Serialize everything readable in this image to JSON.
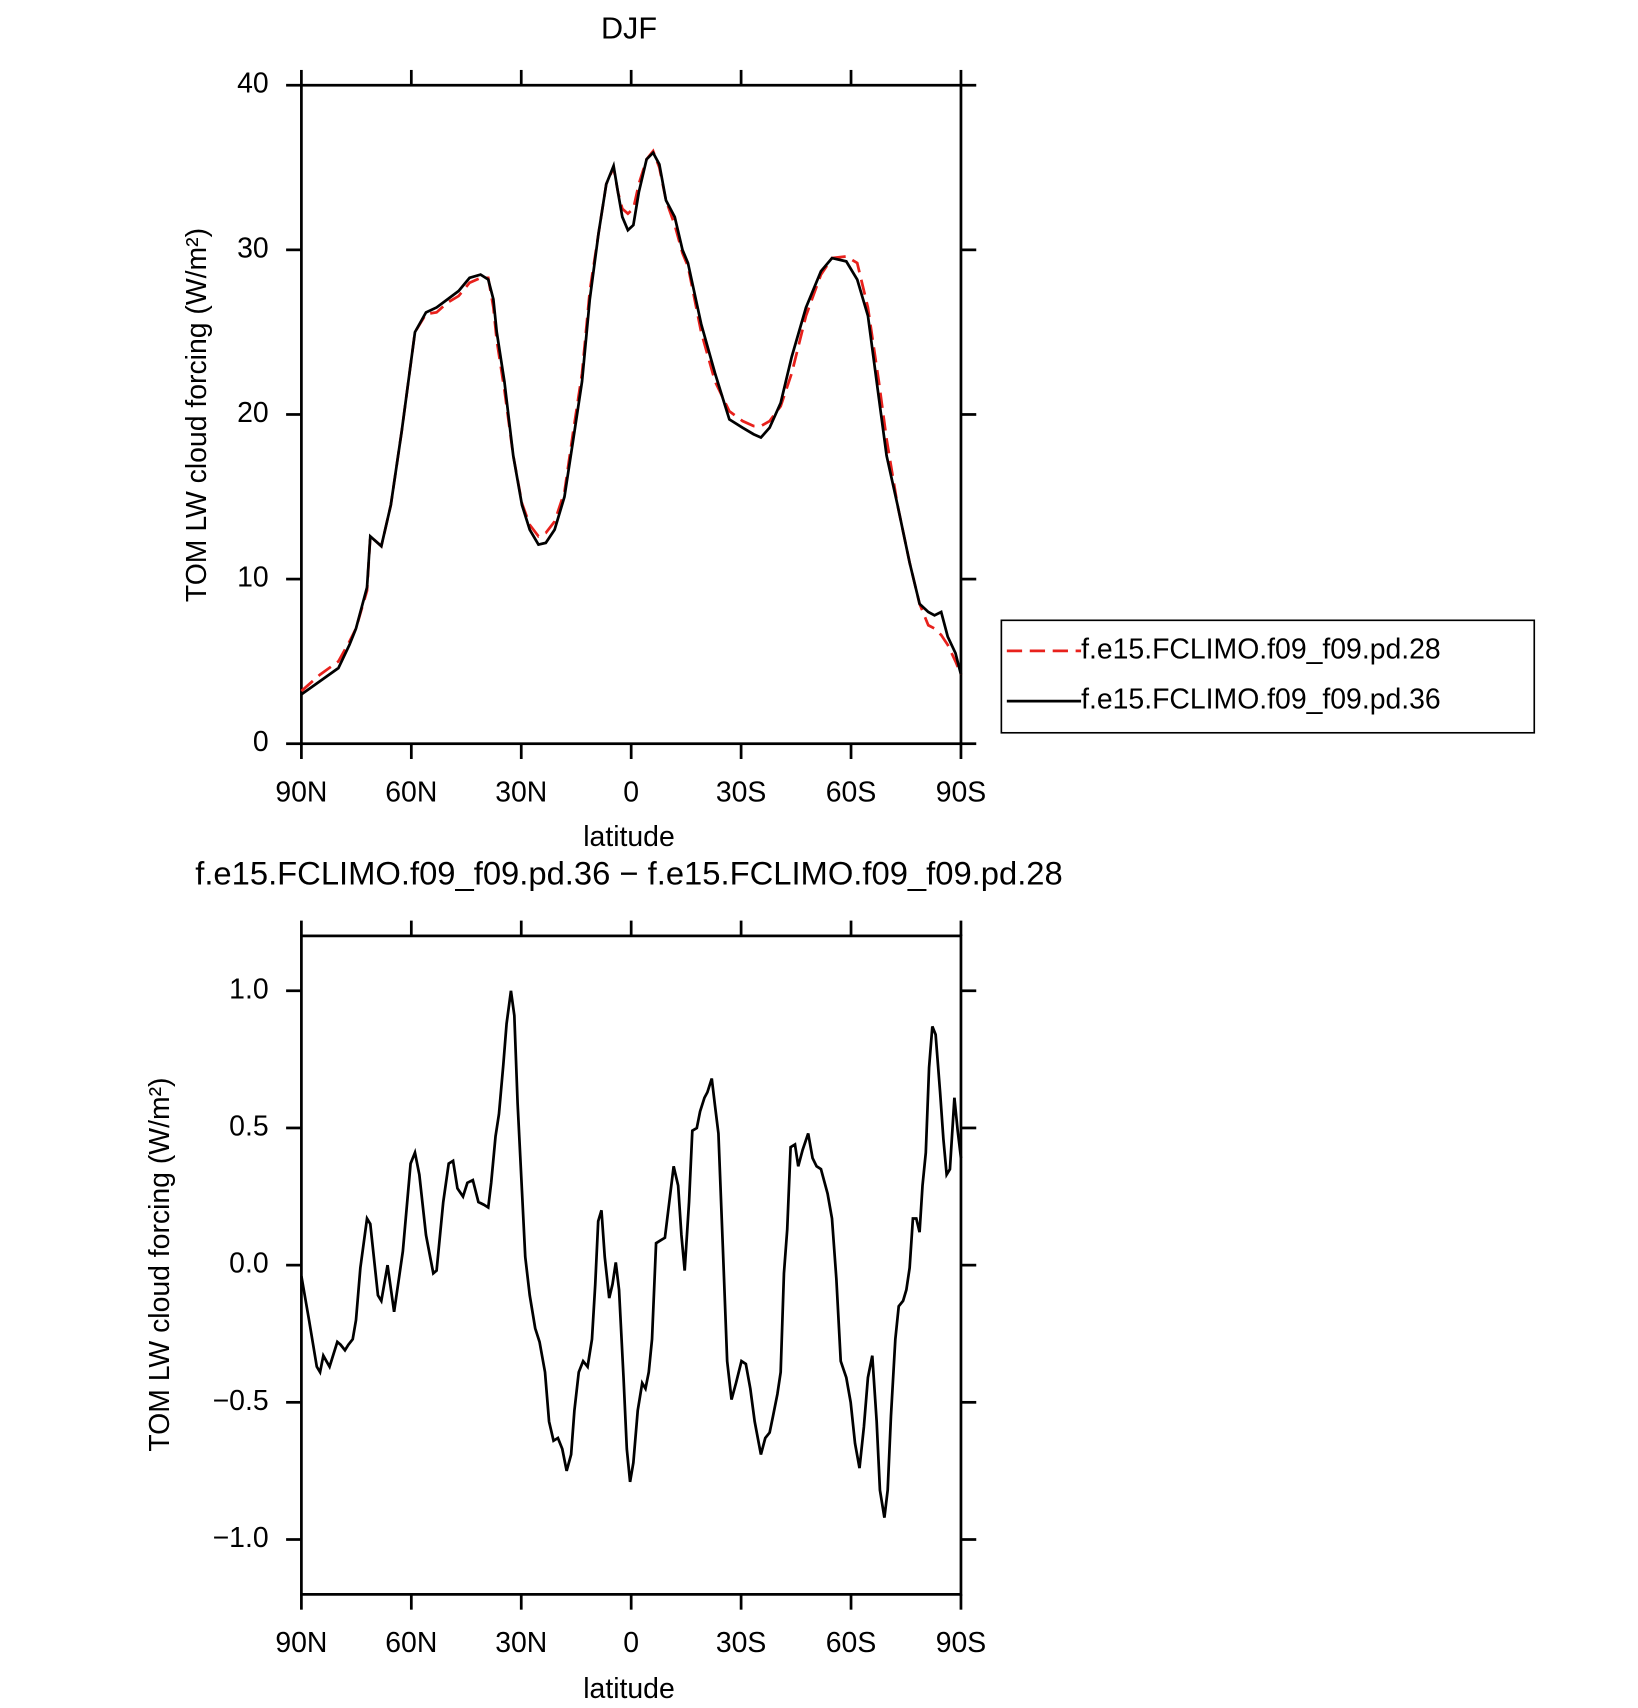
{
  "chart_data": [
    {
      "type": "line",
      "title": "DJF",
      "xlabel": "latitude",
      "ylabel": "TOM LW cloud forcing (W/m²)",
      "xlim": [
        90,
        -90
      ],
      "ylim": [
        0,
        40
      ],
      "xticks": [
        {
          "value": 90,
          "label": "90N"
        },
        {
          "value": 60,
          "label": "60N"
        },
        {
          "value": 30,
          "label": "30N"
        },
        0,
        {
          "value": -30,
          "label": "30S"
        },
        {
          "value": -60,
          "label": "60S"
        },
        {
          "value": -90,
          "label": "90S"
        }
      ],
      "yticks": [
        0,
        10,
        20,
        30,
        40
      ],
      "legend": "outside-right",
      "x": [
        90,
        84.9,
        79.9,
        76.9,
        75.1,
        72.1,
        71.2,
        68.2,
        65.6,
        62.6,
        59.0,
        56.0,
        53.1,
        50.1,
        47.1,
        44.1,
        41.1,
        39.0,
        37.6,
        36.7,
        34.6,
        32.2,
        29.8,
        27.7,
        25.3,
        23.3,
        20.9,
        18.2,
        15.8,
        13.4,
        11.3,
        8.9,
        6.8,
        4.8,
        3.6,
        2.4,
        0.9,
        -0.6,
        -2.1,
        -4.2,
        -6.0,
        -7.7,
        -9.5,
        -11.9,
        -14.0,
        -15.5,
        -19.1,
        -22.9,
        -26.8,
        -30.4,
        -33.4,
        -35.4,
        -37.8,
        -40.8,
        -43.8,
        -47.7,
        -51.8,
        -54.8,
        -58.7,
        -61.7,
        -64.6,
        -67.6,
        -69.7,
        -72.7,
        -76.0,
        -78.7,
        -81.1,
        -82.8,
        -84.6,
        -86.4,
        -88.5,
        -90
      ],
      "series": [
        {
          "name": "f.e15.FCLIMO.f09_f09.pd.28",
          "color": "#e8211c",
          "dash": "dashed",
          "values": [
            3.2,
            4.2,
            5.0,
            6.2,
            7.0,
            9.3,
            12.6,
            12.0,
            14.5,
            19.0,
            25.0,
            26.1,
            26.2,
            26.8,
            27.2,
            28.0,
            28.3,
            28.3,
            26.5,
            24.5,
            21.5,
            17.5,
            14.6,
            13.3,
            12.6,
            12.8,
            13.5,
            15.3,
            19.0,
            22.5,
            27.5,
            31.0,
            34.0,
            35.0,
            33.5,
            32.5,
            32.2,
            32.5,
            34.0,
            35.5,
            36.0,
            35.0,
            33.0,
            31.5,
            29.8,
            29.0,
            25.0,
            22.0,
            20.2,
            19.6,
            19.3,
            19.3,
            19.6,
            20.5,
            22.5,
            26.0,
            28.5,
            29.5,
            29.6,
            29.2,
            26.5,
            22.0,
            18.5,
            14.5,
            11.0,
            8.5,
            7.2,
            7.0,
            6.6,
            6.0,
            5.0,
            4.2
          ]
        },
        {
          "name": "f.e15.FCLIMO.f09_f09.pd.36",
          "color": "#000000",
          "dash": "solid",
          "values": [
            3.0,
            3.8,
            4.6,
            6.0,
            7.0,
            9.5,
            12.6,
            12.0,
            14.5,
            19.0,
            25.0,
            26.2,
            26.5,
            27.0,
            27.5,
            28.3,
            28.5,
            28.2,
            27.0,
            25.0,
            22.0,
            17.5,
            14.5,
            13.0,
            12.1,
            12.2,
            13.0,
            15.0,
            18.5,
            22.0,
            27.0,
            31.0,
            34.0,
            35.1,
            33.5,
            32.0,
            31.2,
            31.5,
            33.5,
            35.5,
            35.9,
            35.2,
            33.0,
            32.0,
            30.0,
            29.2,
            25.5,
            22.5,
            19.7,
            19.2,
            18.8,
            18.6,
            19.2,
            20.7,
            23.5,
            26.5,
            28.7,
            29.5,
            29.3,
            28.2,
            26.0,
            21.0,
            17.5,
            14.5,
            11.0,
            8.5,
            8.0,
            7.8,
            8.0,
            6.5,
            5.5,
            4.2
          ]
        }
      ]
    },
    {
      "type": "line",
      "title": "f.e15.FCLIMO.f09_f09.pd.36 − f.e15.FCLIMO.f09_f09.pd.28",
      "xlabel": "latitude",
      "ylabel": "TOM LW cloud forcing (W/m²)",
      "xlim": [
        90,
        -90
      ],
      "ylim": [
        -1.2,
        1.2
      ],
      "xticks": [
        {
          "value": 90,
          "label": "90N"
        },
        {
          "value": 60,
          "label": "60N"
        },
        {
          "value": 30,
          "label": "30N"
        },
        0,
        {
          "value": -30,
          "label": "30S"
        },
        {
          "value": -60,
          "label": "60S"
        },
        {
          "value": -90,
          "label": "90S"
        }
      ],
      "yticks": [
        {
          "value": -1,
          "label": "−1.0"
        },
        {
          "value": -0.5,
          "label": "−0.5"
        },
        {
          "value": 0,
          "label": "0.0"
        },
        0.5,
        {
          "value": 1,
          "label": "1.0"
        }
      ],
      "x": [
        90,
        87.9,
        85.8,
        84.9,
        84.0,
        82.3,
        80.2,
        79.3,
        78.1,
        77.2,
        76.0,
        75.1,
        73.9,
        72.1,
        71.2,
        69.1,
        68.2,
        66.5,
        64.7,
        62.3,
        60.2,
        59.0,
        57.8,
        56.0,
        54.0,
        53.1,
        51.3,
        49.8,
        48.6,
        47.4,
        45.9,
        44.7,
        43.2,
        41.7,
        40.2,
        39.0,
        38.2,
        37.0,
        36.1,
        34.9,
        34.0,
        32.8,
        31.9,
        31.0,
        29.8,
        28.9,
        27.7,
        26.2,
        25.0,
        23.5,
        22.4,
        21.2,
        20.0,
        18.8,
        17.6,
        16.4,
        15.5,
        14.3,
        13.1,
        11.9,
        10.7,
        9.8,
        9.0,
        8.1,
        7.2,
        6.0,
        5.1,
        4.2,
        3.3,
        2.1,
        1.2,
        0.3,
        -0.6,
        -1.8,
        -3.0,
        -3.9,
        -4.8,
        -5.7,
        -6.8,
        -8.0,
        -9.2,
        -10.4,
        -11.6,
        -12.8,
        -13.7,
        -14.6,
        -15.8,
        -16.7,
        -17.9,
        -18.8,
        -20.0,
        -20.8,
        -22.0,
        -22.9,
        -23.8,
        -25.0,
        -26.2,
        -27.4,
        -28.6,
        -30.1,
        -31.3,
        -32.5,
        -33.7,
        -35.4,
        -36.6,
        -37.8,
        -38.7,
        -39.9,
        -40.8,
        -41.7,
        -42.6,
        -43.5,
        -44.7,
        -45.6,
        -46.8,
        -48.3,
        -49.5,
        -50.6,
        -51.8,
        -53.6,
        -54.8,
        -56.0,
        -57.2,
        -58.7,
        -59.9,
        -61.1,
        -62.3,
        -63.5,
        -64.6,
        -65.8,
        -67.0,
        -67.9,
        -69.1,
        -70.0,
        -70.9,
        -72.1,
        -73.0,
        -74.2,
        -75.1,
        -76.0,
        -76.9,
        -77.8,
        -78.7,
        -79.5,
        -80.4,
        -81.3,
        -82.2,
        -83.1,
        -84.3,
        -85.2,
        -86.1,
        -87.0,
        -88.2,
        -89.1,
        -90
      ],
      "series": [
        {
          "color": "#000000",
          "dash": "solid",
          "values": [
            -0.04,
            -0.2,
            -0.37,
            -0.39,
            -0.33,
            -0.37,
            -0.28,
            -0.29,
            -0.31,
            -0.29,
            -0.27,
            -0.2,
            -0.01,
            0.17,
            0.15,
            -0.11,
            -0.13,
            0.0,
            -0.17,
            0.05,
            0.37,
            0.41,
            0.33,
            0.11,
            -0.03,
            -0.02,
            0.23,
            0.37,
            0.38,
            0.28,
            0.25,
            0.3,
            0.31,
            0.23,
            0.22,
            0.21,
            0.3,
            0.47,
            0.55,
            0.73,
            0.88,
            1.0,
            0.91,
            0.59,
            0.27,
            0.03,
            -0.11,
            -0.23,
            -0.28,
            -0.39,
            -0.57,
            -0.64,
            -0.63,
            -0.67,
            -0.75,
            -0.69,
            -0.53,
            -0.39,
            -0.35,
            -0.37,
            -0.27,
            -0.07,
            0.16,
            0.2,
            0.03,
            -0.12,
            -0.07,
            0.01,
            -0.09,
            -0.41,
            -0.67,
            -0.79,
            -0.72,
            -0.53,
            -0.43,
            -0.45,
            -0.39,
            -0.27,
            0.08,
            0.09,
            0.1,
            0.23,
            0.36,
            0.29,
            0.11,
            -0.02,
            0.23,
            0.49,
            0.5,
            0.56,
            0.61,
            0.63,
            0.68,
            0.58,
            0.48,
            0.07,
            -0.35,
            -0.49,
            -0.43,
            -0.35,
            -0.36,
            -0.45,
            -0.57,
            -0.69,
            -0.63,
            -0.61,
            -0.55,
            -0.47,
            -0.39,
            -0.03,
            0.13,
            0.43,
            0.44,
            0.36,
            0.42,
            0.48,
            0.39,
            0.36,
            0.35,
            0.26,
            0.17,
            -0.05,
            -0.35,
            -0.41,
            -0.5,
            -0.65,
            -0.74,
            -0.59,
            -0.41,
            -0.33,
            -0.57,
            -0.82,
            -0.92,
            -0.82,
            -0.55,
            -0.27,
            -0.15,
            -0.13,
            -0.09,
            -0.01,
            0.17,
            0.17,
            0.12,
            0.29,
            0.41,
            0.72,
            0.87,
            0.84,
            0.63,
            0.46,
            0.33,
            0.35,
            0.61,
            0.49,
            0.39
          ]
        }
      ]
    }
  ]
}
